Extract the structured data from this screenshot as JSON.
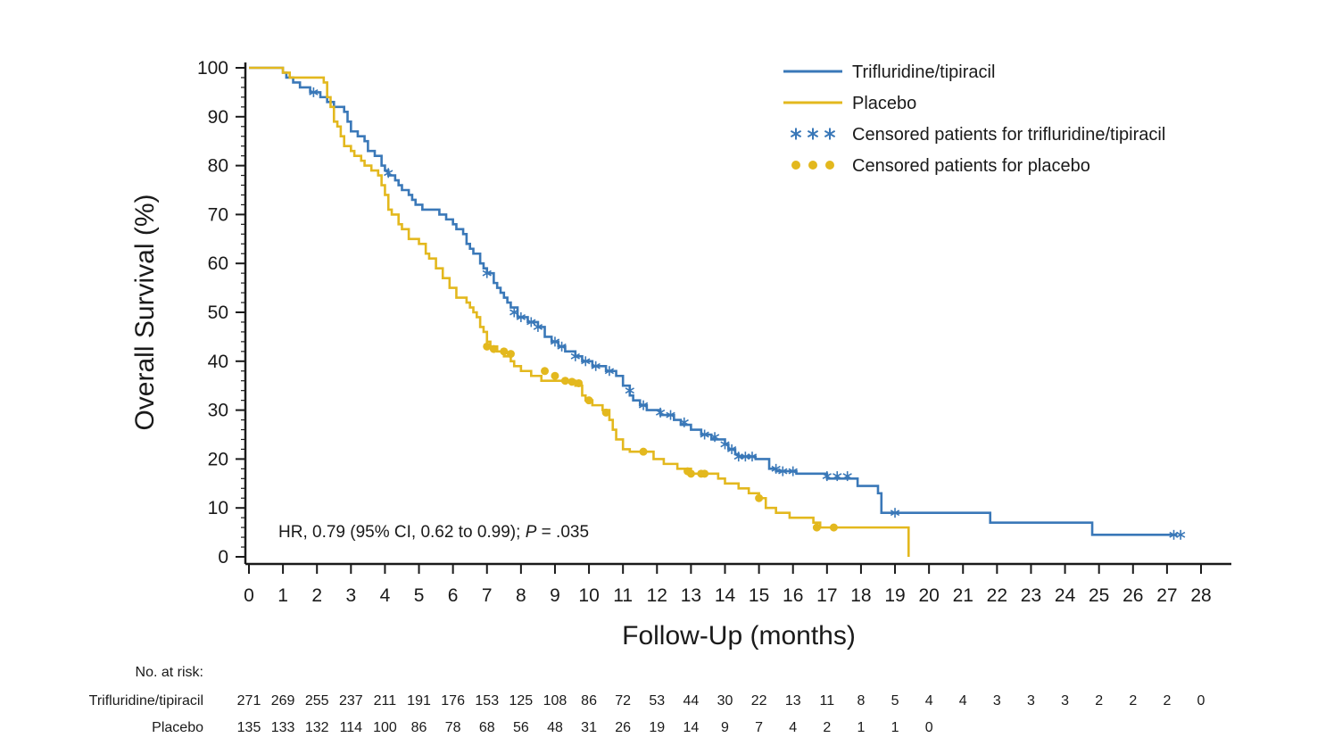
{
  "chart_data": {
    "type": "line",
    "title": "",
    "xlabel": "Follow-Up (months)",
    "ylabel": "Overall Survival (%)",
    "xlim": [
      0,
      28
    ],
    "ylim": [
      0,
      100
    ],
    "xticks": [
      0,
      1,
      2,
      3,
      4,
      5,
      6,
      7,
      8,
      9,
      10,
      11,
      12,
      13,
      14,
      15,
      16,
      17,
      18,
      19,
      20,
      21,
      22,
      23,
      24,
      25,
      26,
      27,
      28
    ],
    "yticks": [
      0,
      10,
      20,
      30,
      40,
      50,
      60,
      70,
      80,
      90,
      100
    ],
    "legend_position": "top-right",
    "legend": [
      {
        "label": "Trifluridine/tipiracil",
        "kind": "line",
        "color": "#3a78b8"
      },
      {
        "label": "Placebo",
        "kind": "line",
        "color": "#e3b81e"
      },
      {
        "label": "Censored patients for trifluridine/tipiracil",
        "kind": "star",
        "color": "#3a78b8"
      },
      {
        "label": "Censored patients for placebo",
        "kind": "dot",
        "color": "#e3b81e"
      }
    ],
    "annotation": {
      "prefix": "HR, 0.79 (95% CI, 0.62 to 0.99); ",
      "p_symbol": "P",
      "suffix": " = .035"
    },
    "series": [
      {
        "name": "Trifluridine/tipiracil",
        "color": "#3a78b8",
        "steps": [
          [
            0,
            100
          ],
          [
            1.0,
            99
          ],
          [
            1.1,
            98
          ],
          [
            1.3,
            97
          ],
          [
            1.5,
            96
          ],
          [
            1.8,
            95
          ],
          [
            2.1,
            94
          ],
          [
            2.3,
            93
          ],
          [
            2.5,
            92
          ],
          [
            2.8,
            91
          ],
          [
            2.9,
            89
          ],
          [
            3.0,
            87
          ],
          [
            3.2,
            86
          ],
          [
            3.4,
            85
          ],
          [
            3.5,
            83
          ],
          [
            3.7,
            82
          ],
          [
            3.9,
            80
          ],
          [
            4.0,
            79
          ],
          [
            4.1,
            78
          ],
          [
            4.3,
            77
          ],
          [
            4.4,
            76
          ],
          [
            4.5,
            75
          ],
          [
            4.7,
            74
          ],
          [
            4.8,
            73
          ],
          [
            4.9,
            72
          ],
          [
            5.1,
            71
          ],
          [
            5.6,
            70
          ],
          [
            5.8,
            69
          ],
          [
            6.0,
            68
          ],
          [
            6.1,
            67
          ],
          [
            6.3,
            66
          ],
          [
            6.4,
            64
          ],
          [
            6.5,
            63
          ],
          [
            6.6,
            62
          ],
          [
            6.8,
            60
          ],
          [
            6.9,
            59
          ],
          [
            7.0,
            58
          ],
          [
            7.2,
            56
          ],
          [
            7.3,
            55
          ],
          [
            7.4,
            54
          ],
          [
            7.5,
            53
          ],
          [
            7.6,
            52
          ],
          [
            7.7,
            51
          ],
          [
            7.9,
            49
          ],
          [
            8.2,
            48
          ],
          [
            8.5,
            47
          ],
          [
            8.7,
            45
          ],
          [
            8.9,
            44
          ],
          [
            9.1,
            43
          ],
          [
            9.3,
            42
          ],
          [
            9.6,
            41
          ],
          [
            9.8,
            40
          ],
          [
            10.1,
            39
          ],
          [
            10.5,
            38
          ],
          [
            10.8,
            37
          ],
          [
            11.0,
            35
          ],
          [
            11.2,
            33
          ],
          [
            11.3,
            32
          ],
          [
            11.5,
            31
          ],
          [
            11.7,
            30
          ],
          [
            12.1,
            29
          ],
          [
            12.5,
            28
          ],
          [
            12.7,
            27
          ],
          [
            13.0,
            26
          ],
          [
            13.3,
            25
          ],
          [
            13.6,
            24
          ],
          [
            14.0,
            23
          ],
          [
            14.1,
            22
          ],
          [
            14.3,
            21
          ],
          [
            14.4,
            20.5
          ],
          [
            14.9,
            20
          ],
          [
            15.3,
            18
          ],
          [
            15.5,
            17.5
          ],
          [
            16.1,
            17
          ],
          [
            17.0,
            16
          ],
          [
            17.7,
            16
          ],
          [
            17.9,
            14.5
          ],
          [
            18.5,
            13
          ],
          [
            18.6,
            9
          ],
          [
            21.8,
            7
          ],
          [
            24.8,
            4.5
          ],
          [
            27.3,
            4.5
          ]
        ],
        "censored": [
          [
            1.9,
            95
          ],
          [
            4.1,
            78.5
          ],
          [
            7.0,
            58
          ],
          [
            7.8,
            50
          ],
          [
            8.0,
            49
          ],
          [
            8.3,
            48
          ],
          [
            8.5,
            47
          ],
          [
            9.0,
            44
          ],
          [
            9.2,
            43
          ],
          [
            9.6,
            41
          ],
          [
            9.9,
            40
          ],
          [
            10.2,
            39
          ],
          [
            10.6,
            38
          ],
          [
            11.2,
            34
          ],
          [
            11.6,
            31
          ],
          [
            12.1,
            29.5
          ],
          [
            12.4,
            29
          ],
          [
            12.8,
            27.5
          ],
          [
            13.4,
            25
          ],
          [
            13.7,
            24.5
          ],
          [
            14.0,
            23
          ],
          [
            14.2,
            22
          ],
          [
            14.4,
            20.5
          ],
          [
            14.6,
            20.5
          ],
          [
            14.8,
            20.5
          ],
          [
            15.5,
            18
          ],
          [
            15.7,
            17.5
          ],
          [
            16.0,
            17.5
          ],
          [
            17.0,
            16.5
          ],
          [
            17.3,
            16.5
          ],
          [
            17.6,
            16.5
          ],
          [
            19.0,
            9
          ],
          [
            27.2,
            4.5
          ],
          [
            27.4,
            4.5
          ]
        ]
      },
      {
        "name": "Placebo",
        "color": "#e3b81e",
        "steps": [
          [
            0,
            100
          ],
          [
            1.0,
            99
          ],
          [
            1.2,
            98
          ],
          [
            1.6,
            98
          ],
          [
            2.2,
            97
          ],
          [
            2.3,
            94
          ],
          [
            2.4,
            92
          ],
          [
            2.5,
            89
          ],
          [
            2.6,
            88
          ],
          [
            2.7,
            86
          ],
          [
            2.8,
            84
          ],
          [
            3.0,
            83
          ],
          [
            3.1,
            82
          ],
          [
            3.3,
            81
          ],
          [
            3.4,
            80
          ],
          [
            3.6,
            79
          ],
          [
            3.8,
            78
          ],
          [
            3.9,
            76
          ],
          [
            4.0,
            74
          ],
          [
            4.1,
            71
          ],
          [
            4.2,
            70
          ],
          [
            4.4,
            68
          ],
          [
            4.5,
            67
          ],
          [
            4.7,
            65
          ],
          [
            5.0,
            64
          ],
          [
            5.2,
            62
          ],
          [
            5.3,
            61
          ],
          [
            5.5,
            59
          ],
          [
            5.7,
            57
          ],
          [
            5.9,
            55
          ],
          [
            6.1,
            53
          ],
          [
            6.4,
            52
          ],
          [
            6.5,
            51
          ],
          [
            6.6,
            50
          ],
          [
            6.7,
            49
          ],
          [
            6.8,
            47
          ],
          [
            6.9,
            46
          ],
          [
            7.0,
            44
          ],
          [
            7.1,
            43
          ],
          [
            7.3,
            42
          ],
          [
            7.5,
            41
          ],
          [
            7.7,
            40
          ],
          [
            7.8,
            39
          ],
          [
            8.0,
            38
          ],
          [
            8.3,
            37
          ],
          [
            8.6,
            36
          ],
          [
            9.6,
            35
          ],
          [
            9.8,
            33
          ],
          [
            9.9,
            32
          ],
          [
            10.1,
            31
          ],
          [
            10.4,
            30
          ],
          [
            10.6,
            28
          ],
          [
            10.7,
            26
          ],
          [
            10.8,
            24
          ],
          [
            11.0,
            22
          ],
          [
            11.2,
            21.5
          ],
          [
            11.6,
            21.5
          ],
          [
            11.9,
            20
          ],
          [
            12.2,
            19
          ],
          [
            12.6,
            18
          ],
          [
            13.0,
            17
          ],
          [
            13.8,
            16
          ],
          [
            14.0,
            15
          ],
          [
            14.4,
            14
          ],
          [
            14.7,
            13
          ],
          [
            15.0,
            12
          ],
          [
            15.2,
            10
          ],
          [
            15.5,
            9
          ],
          [
            15.9,
            8
          ],
          [
            16.6,
            7
          ],
          [
            16.8,
            6
          ],
          [
            19.4,
            0
          ]
        ],
        "censored": [
          [
            7.0,
            43
          ],
          [
            7.2,
            42.5
          ],
          [
            7.5,
            42
          ],
          [
            7.7,
            41.5
          ],
          [
            8.7,
            38
          ],
          [
            9.0,
            37
          ],
          [
            9.3,
            36
          ],
          [
            9.5,
            35.8
          ],
          [
            9.7,
            35.5
          ],
          [
            10.0,
            32
          ],
          [
            10.5,
            29.5
          ],
          [
            11.6,
            21.5
          ],
          [
            12.9,
            17.5
          ],
          [
            13.0,
            17
          ],
          [
            13.3,
            17
          ],
          [
            13.4,
            17
          ],
          [
            15.0,
            12
          ],
          [
            16.7,
            6
          ],
          [
            17.2,
            6
          ]
        ]
      }
    ]
  },
  "risk_table": {
    "heading": "No. at risk:",
    "rows": [
      {
        "label": "Trifluridine/tipiracil",
        "values": [
          "271",
          "269",
          "255",
          "237",
          "211",
          "191",
          "176",
          "153",
          "125",
          "108",
          "86",
          "72",
          "53",
          "44",
          "30",
          "22",
          "13",
          "11",
          "8",
          "5",
          "4",
          "4",
          "3",
          "3",
          "3",
          "2",
          "2",
          "2",
          "0"
        ]
      },
      {
        "label": "Placebo",
        "values": [
          "135",
          "133",
          "132",
          "114",
          "100",
          "86",
          "78",
          "68",
          "56",
          "48",
          "31",
          "26",
          "19",
          "14",
          "9",
          "7",
          "4",
          "2",
          "1",
          "1",
          "0"
        ]
      }
    ]
  }
}
